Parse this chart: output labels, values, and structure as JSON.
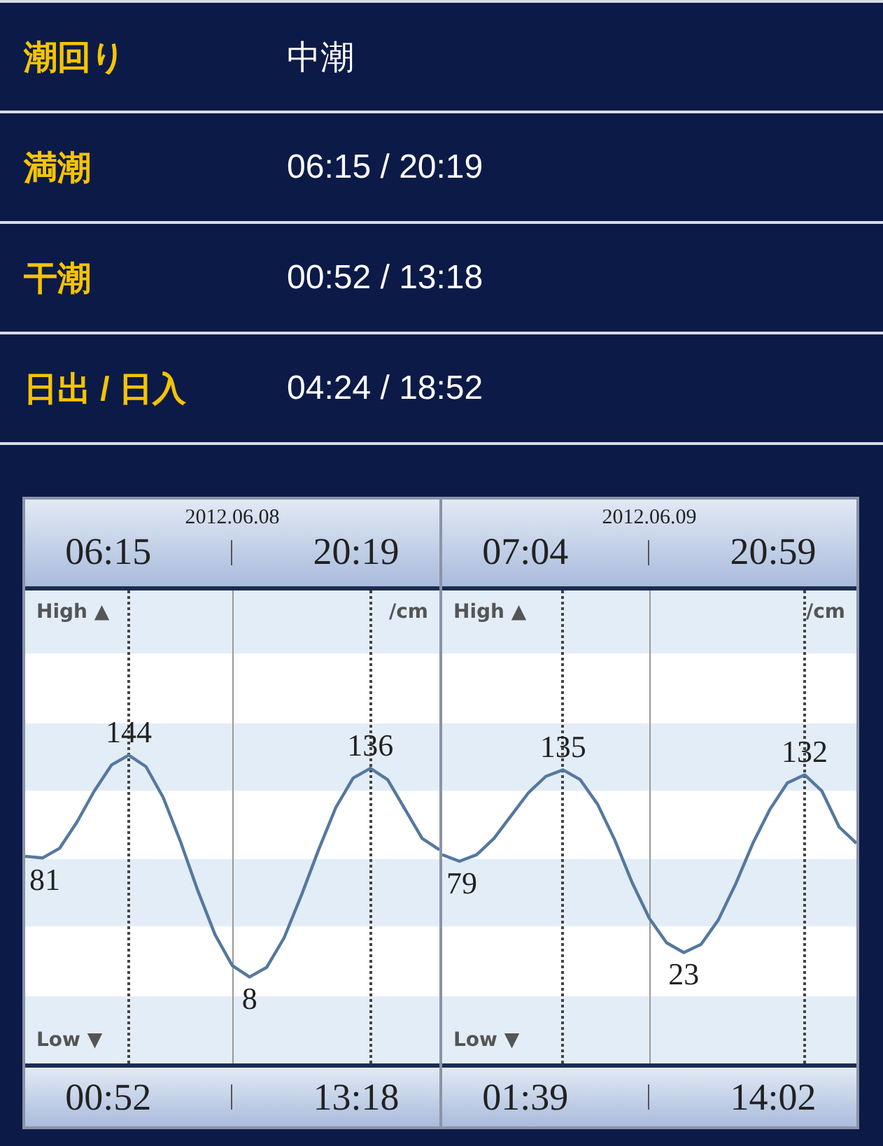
{
  "chart_data": [
    {
      "type": "other",
      "annotations": [
        "潮回り",
        "中潮",
        "満潮",
        "06:15 / 20:19",
        "干潮",
        "00:52 / 13:18",
        "日出 / 日入",
        "04:24 / 18:52"
      ]
    },
    {
      "type": "line",
      "title": "2012.06.08",
      "ylabel": "/cm",
      "color": "#55789e",
      "marker": "none",
      "categories": [
        null,
        null,
        null,
        null,
        null,
        null,
        null,
        null,
        null,
        null,
        null,
        null,
        null,
        null,
        null,
        null,
        null,
        null,
        null,
        null,
        null,
        null,
        null,
        null,
        null
      ],
      "values": [
        82,
        81,
        87,
        103,
        122,
        138,
        144,
        137,
        118,
        91,
        61,
        34,
        15,
        8,
        14,
        32,
        58,
        86,
        112,
        130,
        136,
        129,
        111,
        93,
        86
      ],
      "value_labels": [
        null,
        "81",
        null,
        null,
        null,
        null,
        "144",
        null,
        null,
        null,
        null,
        null,
        null,
        "8",
        null,
        null,
        null,
        null,
        null,
        null,
        "136",
        null,
        null,
        null,
        null
      ],
      "ylim": [
        -45,
        245
      ],
      "tick_labels": false,
      "annotations": [
        "06:15",
        "20:19",
        "High ▲",
        "Low ▼",
        "00:52",
        "13:18"
      ]
    },
    {
      "type": "line",
      "title": "2012.06.09",
      "ylabel": "/cm",
      "color": "#55789e",
      "marker": "none",
      "categories": [
        null,
        null,
        null,
        null,
        null,
        null,
        null,
        null,
        null,
        null,
        null,
        null,
        null,
        null,
        null,
        null,
        null,
        null,
        null,
        null,
        null,
        null,
        null,
        null,
        null
      ],
      "values": [
        83,
        79,
        83,
        93,
        107,
        121,
        131,
        135,
        129,
        114,
        92,
        66,
        44,
        29,
        23,
        28,
        43,
        65,
        90,
        111,
        127,
        132,
        122,
        100,
        90
      ],
      "value_labels": [
        null,
        "79",
        null,
        null,
        null,
        null,
        null,
        "135",
        null,
        null,
        null,
        null,
        null,
        null,
        "23",
        null,
        null,
        null,
        null,
        null,
        null,
        "132",
        null,
        null,
        null
      ],
      "ylim": [
        -45,
        245
      ],
      "tick_labels": false,
      "annotations": [
        "07:04",
        "20:59",
        "High ▲",
        "Low ▼",
        "01:39",
        "14:02"
      ]
    }
  ]
}
